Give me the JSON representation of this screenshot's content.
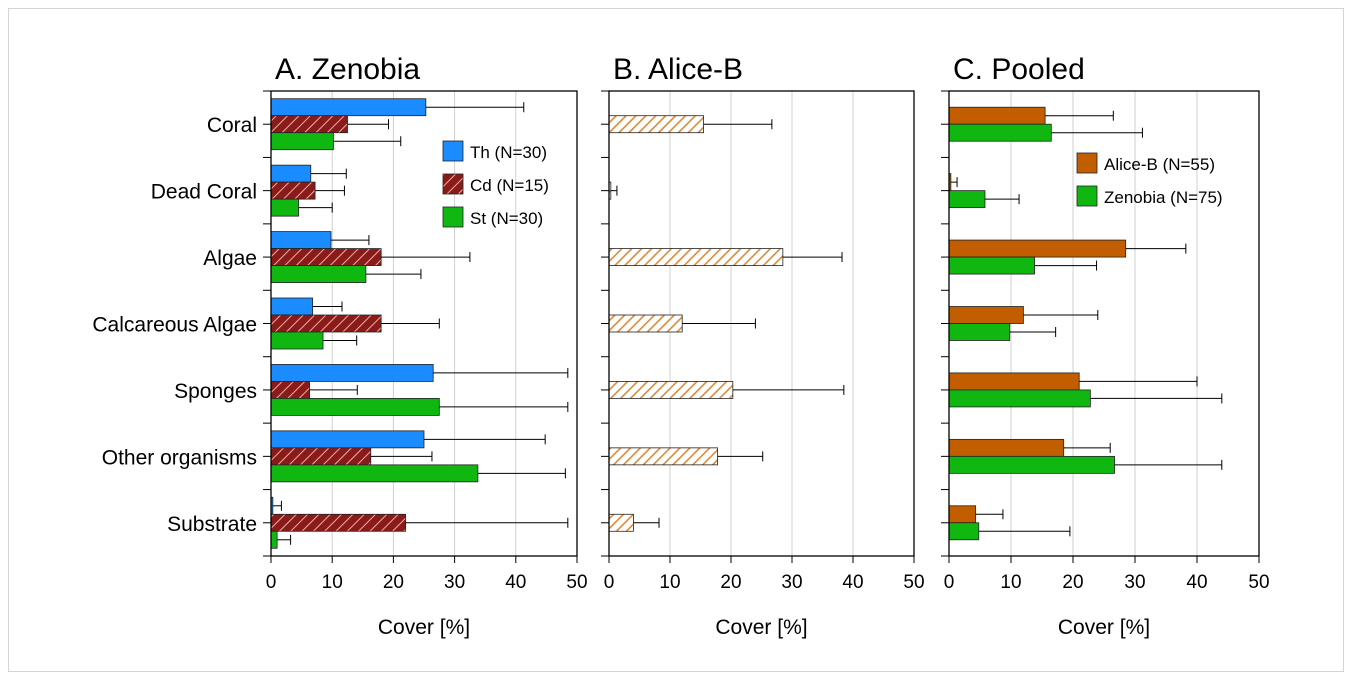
{
  "chart_data": [
    {
      "type": "bar",
      "orientation": "horizontal",
      "title": "A. Zenobia",
      "xlabel": "Cover [%]",
      "xlim": [
        0,
        50
      ],
      "xticks": [
        0,
        10,
        20,
        30,
        40,
        50
      ],
      "grid": true,
      "legend": "top-right",
      "categories": [
        "Coral",
        "Dead Coral",
        "Algae",
        "Calcareous Algae",
        "Sponges",
        "Other organisms",
        "Substrate"
      ],
      "series": [
        {
          "name": "Th (N=30)",
          "color": "#1a8cff",
          "pattern": "solid",
          "values": [
            25.3,
            6.5,
            9.8,
            6.8,
            26.5,
            25.0,
            0.3
          ],
          "errors": [
            16.0,
            5.8,
            6.2,
            4.8,
            22.0,
            19.8,
            1.4
          ]
        },
        {
          "name": "Cd (N=15)",
          "color": "#8b1a1a",
          "pattern": "hatch",
          "values": [
            12.5,
            7.2,
            18.0,
            18.0,
            6.3,
            16.3,
            22.0
          ],
          "errors": [
            6.7,
            4.8,
            14.5,
            9.5,
            7.8,
            10.0,
            26.5
          ]
        },
        {
          "name": "St (N=30)",
          "color": "#11b711",
          "pattern": "solid",
          "values": [
            10.2,
            4.5,
            15.5,
            8.5,
            27.5,
            33.8,
            1.0
          ],
          "errors": [
            11.0,
            5.5,
            9.0,
            5.5,
            21.0,
            14.3,
            2.2
          ]
        }
      ]
    },
    {
      "type": "bar",
      "orientation": "horizontal",
      "title": "B. Alice-B",
      "xlabel": "Cover [%]",
      "xlim": [
        0,
        50
      ],
      "xticks": [
        0,
        10,
        20,
        30,
        40,
        50
      ],
      "grid": true,
      "categories": [
        "Coral",
        "Dead Coral",
        "Algae",
        "Calcareous Algae",
        "Sponges",
        "Other organisms",
        "Substrate"
      ],
      "series": [
        {
          "name": "",
          "color": "#d98b3a",
          "pattern": "hatch-light",
          "values": [
            15.5,
            0.3,
            28.5,
            12.0,
            20.3,
            17.8,
            4.0
          ],
          "errors": [
            11.2,
            1.0,
            9.7,
            12.0,
            18.2,
            7.4,
            4.2
          ]
        }
      ]
    },
    {
      "type": "bar",
      "orientation": "horizontal",
      "title": "C. Pooled",
      "xlabel": "Cover [%]",
      "xlim": [
        0,
        50
      ],
      "xticks": [
        0,
        10,
        20,
        30,
        40,
        50
      ],
      "grid": true,
      "legend": "top-right",
      "categories": [
        "Coral",
        "Dead Coral",
        "Algae",
        "Calcareous Algae",
        "Sponges",
        "Other organisms",
        "Substrate"
      ],
      "series": [
        {
          "name": "Alice-B (N=55)",
          "color": "#c25e00",
          "pattern": "solid",
          "values": [
            15.5,
            0.3,
            28.5,
            12.0,
            21.0,
            18.5,
            4.3
          ],
          "errors": [
            11.0,
            1.0,
            9.7,
            12.0,
            19.0,
            7.5,
            4.4
          ]
        },
        {
          "name": "Zenobia (N=75)",
          "color": "#11b711",
          "pattern": "solid",
          "values": [
            16.5,
            5.8,
            13.8,
            9.8,
            22.8,
            26.7,
            4.8
          ],
          "errors": [
            14.7,
            5.5,
            10.0,
            7.4,
            21.2,
            17.3,
            14.7
          ]
        }
      ]
    }
  ]
}
